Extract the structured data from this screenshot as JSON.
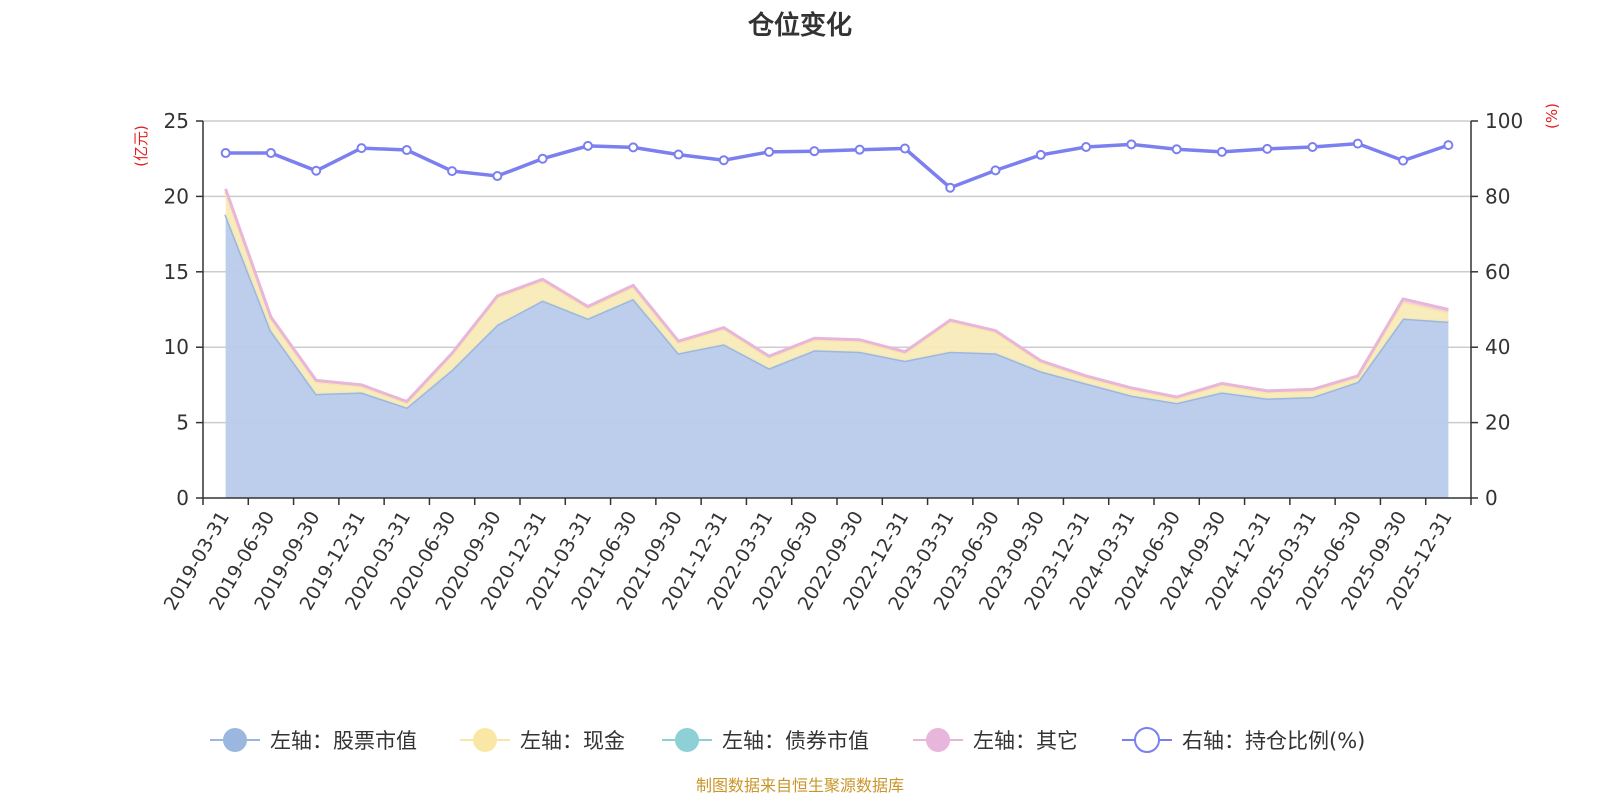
{
  "chart_data": {
    "type": "area",
    "title": "仓位变化",
    "source_note": "制图数据来自恒生聚源数据库",
    "left_axis": {
      "unit": "(亿元)",
      "ylim": [
        0,
        25
      ],
      "ticks": [
        "0",
        "5",
        "10",
        "15",
        "20",
        "25"
      ],
      "tick_values": [
        0,
        5,
        10,
        15,
        20,
        25
      ]
    },
    "right_axis": {
      "unit": "(%)",
      "ylim": [
        0,
        100
      ],
      "ticks": [
        "0",
        "20",
        "40",
        "60",
        "80",
        "100"
      ],
      "tick_values": [
        0,
        20,
        40,
        60,
        80,
        100
      ]
    },
    "categories": [
      "2019-03-31",
      "2019-06-30",
      "2019-09-30",
      "2019-12-31",
      "2020-03-31",
      "2020-06-30",
      "2020-09-30",
      "2020-12-31",
      "2021-03-31",
      "2021-06-30",
      "2021-09-30",
      "2021-12-31",
      "2022-03-31",
      "2022-06-30",
      "2022-09-30",
      "2022-12-31",
      "2023-03-31",
      "2023-06-30",
      "2023-09-30",
      "2023-12-31",
      "2024-03-31",
      "2024-06-30",
      "2024-09-30",
      "2024-12-31",
      "2025-03-31",
      "2025-06-30",
      "2025-09-30",
      "2025-12-31"
    ],
    "series": [
      {
        "name": "左轴：股票市值",
        "axis": "left",
        "stacked": true,
        "color": "#9bb7e0",
        "fill": "#b8cbea",
        "values": [
          18.8,
          11.1,
          6.9,
          7.0,
          6.0,
          8.5,
          11.5,
          13.1,
          11.9,
          13.2,
          9.6,
          10.2,
          8.6,
          9.8,
          9.7,
          9.1,
          9.7,
          9.6,
          8.4,
          7.6,
          6.8,
          6.3,
          7.0,
          6.6,
          6.7,
          7.7,
          11.9,
          11.7
        ]
      },
      {
        "name": "左轴：现金",
        "axis": "left",
        "stacked": true,
        "color": "#f9e7a5",
        "fill": "#f9ebb8",
        "values": [
          1.5,
          0.8,
          0.8,
          0.4,
          0.3,
          1.0,
          1.8,
          1.3,
          0.7,
          0.8,
          0.7,
          1.0,
          0.7,
          0.7,
          0.7,
          0.5,
          2.0,
          1.4,
          0.6,
          0.4,
          0.4,
          0.3,
          0.5,
          0.4,
          0.4,
          0.3,
          1.1,
          0.6
        ]
      },
      {
        "name": "左轴：债券市值",
        "axis": "left",
        "stacked": true,
        "color": "#8ed0d6",
        "fill": "#a8dce0",
        "values": [
          0,
          0,
          0,
          0,
          0,
          0,
          0,
          0,
          0,
          0,
          0,
          0,
          0,
          0,
          0,
          0,
          0,
          0,
          0,
          0,
          0,
          0,
          0,
          0,
          0,
          0,
          0,
          0
        ]
      },
      {
        "name": "左轴：其它",
        "axis": "left",
        "stacked": true,
        "color": "#e8b5db",
        "fill": "#f0cde6",
        "values": [
          0.2,
          0.1,
          0.1,
          0.1,
          0.1,
          0.1,
          0.1,
          0.1,
          0.1,
          0.1,
          0.1,
          0.1,
          0.1,
          0.1,
          0.1,
          0.1,
          0.1,
          0.1,
          0.1,
          0.1,
          0.1,
          0.1,
          0.1,
          0.1,
          0.1,
          0.1,
          0.2,
          0.2
        ]
      },
      {
        "name": "右轴：持仓比例(%)",
        "axis": "right",
        "type": "line",
        "color": "#7b7fef",
        "values": [
          91.5,
          91.5,
          86.8,
          92.8,
          92.3,
          86.7,
          85.4,
          90.0,
          93.4,
          93.0,
          91.1,
          89.6,
          91.8,
          92.0,
          92.4,
          92.7,
          82.3,
          86.9,
          91.0,
          93.1,
          93.8,
          92.5,
          91.8,
          92.6,
          93.1,
          94.0,
          89.5,
          93.6
        ]
      }
    ],
    "legend_position": "bottom"
  }
}
